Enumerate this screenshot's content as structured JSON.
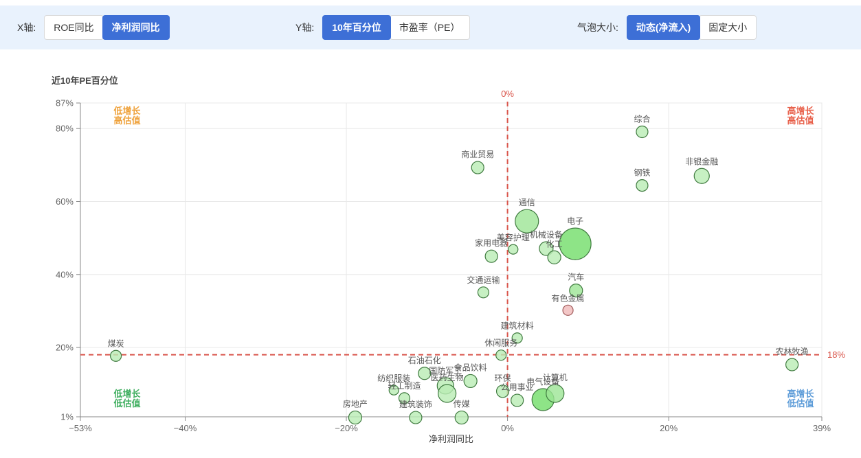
{
  "controls": {
    "x_axis": {
      "label": "X轴:",
      "options": [
        {
          "label": "ROE同比",
          "selected": false
        },
        {
          "label": "净利润同比",
          "selected": true
        }
      ]
    },
    "y_axis": {
      "label": "Y轴:",
      "options": [
        {
          "label": "10年百分位",
          "selected": true
        },
        {
          "label": "市盈率（PE）",
          "selected": false
        }
      ]
    },
    "bubble_size": {
      "label": "气泡大小:",
      "options": [
        {
          "label": "动态(净流入)",
          "selected": true
        },
        {
          "label": "固定大小",
          "selected": false
        }
      ]
    }
  },
  "colors": {
    "accent": "#3d6fd6",
    "toolbar_bg": "#e9f2fd",
    "grid": "#e8e8e8",
    "axis": "#888888",
    "tick_text": "#666666",
    "axis_title": "#444444",
    "bubble_label": "#555555",
    "ref_line": "#d9544a",
    "quadrant_orange": "#efa23c",
    "quadrant_red": "#e8604a",
    "quadrant_green": "#3fae5f",
    "quadrant_blue": "#5b9bd8",
    "bubble_light": "#b9ecb4",
    "bubble_medium": "#9ce595",
    "bubble_dark": "#72dd69",
    "bubble_pink": "#f0b9b9",
    "bubble_stroke_green": "#3f7a3f",
    "bubble_stroke_pink": "#a05a5a"
  },
  "chart_data": {
    "type": "scatter",
    "title": "",
    "xlabel": "净利润同比",
    "ylabel": "近10年PE百分位",
    "xlim": [
      -53,
      39
    ],
    "ylim": [
      1,
      87
    ],
    "x_ticks": [
      -53,
      -40,
      -20,
      0,
      20,
      39
    ],
    "x_tick_labels": [
      "−53%",
      "−40%",
      "−20%",
      "0%",
      "20%",
      "39%"
    ],
    "y_ticks": [
      1,
      20,
      40,
      60,
      80,
      87
    ],
    "y_tick_labels": [
      "1%",
      "20%",
      "40%",
      "60%",
      "80%",
      "87%"
    ],
    "x_gridlines": [
      -40,
      -20,
      0,
      20
    ],
    "y_gridlines": [
      20,
      40,
      60,
      80
    ],
    "grid": true,
    "legend": false,
    "reference_lines": {
      "vertical": {
        "value": 0,
        "label": "0%"
      },
      "horizontal": {
        "value": 18,
        "label": "18%"
      }
    },
    "quadrant_labels": [
      {
        "corner": "top-left",
        "lines": [
          "低增长",
          "高估值"
        ],
        "color_key": "quadrant_orange"
      },
      {
        "corner": "top-right",
        "lines": [
          "高增长",
          "高估值"
        ],
        "color_key": "quadrant_red"
      },
      {
        "corner": "bottom-left",
        "lines": [
          "低增长",
          "低估值"
        ],
        "color_key": "quadrant_green"
      },
      {
        "corner": "bottom-right",
        "lines": [
          "高增长",
          "低估值"
        ],
        "color_key": "quadrant_blue"
      }
    ],
    "points": [
      {
        "name": "煤炭",
        "x": -48.6,
        "y": 17.7,
        "r": 8,
        "shade": "light"
      },
      {
        "name": "房地产",
        "x": -18.9,
        "y": 0.8,
        "r": 9.5,
        "shade": "light"
      },
      {
        "name": "纺织服装",
        "x": -14.1,
        "y": 8.3,
        "r": 7,
        "shade": "light"
      },
      {
        "name": "轻工制造",
        "x": -12.8,
        "y": 6.1,
        "r": 8,
        "shade": "light"
      },
      {
        "name": "建筑装饰",
        "x": -11.4,
        "y": 0.8,
        "r": 9,
        "shade": "light"
      },
      {
        "name": "石油石化",
        "x": -10.3,
        "y": 12.9,
        "r": 9,
        "shade": "light"
      },
      {
        "name": "国防军工",
        "x": -7.7,
        "y": 9.5,
        "r": 12,
        "shade": "light"
      },
      {
        "name": "医药生物",
        "x": -7.5,
        "y": 7.4,
        "r": 13,
        "shade": "light"
      },
      {
        "name": "传媒",
        "x": -5.7,
        "y": 0.8,
        "r": 9.5,
        "shade": "light"
      },
      {
        "name": "食品饮料",
        "x": -4.6,
        "y": 10.8,
        "r": 9.5,
        "shade": "light"
      },
      {
        "name": "商业贸易",
        "x": -3.7,
        "y": 69.3,
        "r": 9,
        "shade": "light"
      },
      {
        "name": "交通运输",
        "x": -3.0,
        "y": 35.1,
        "r": 8,
        "shade": "light"
      },
      {
        "name": "家用电器",
        "x": -2.0,
        "y": 45.0,
        "r": 9,
        "shade": "light"
      },
      {
        "name": "休闲服务",
        "x": -0.8,
        "y": 17.9,
        "r": 7.5,
        "shade": "light"
      },
      {
        "name": "环保",
        "x": -0.6,
        "y": 8.0,
        "r": 9,
        "shade": "light"
      },
      {
        "name": "美容护理",
        "x": 0.7,
        "y": 46.9,
        "r": 7,
        "shade": "light"
      },
      {
        "name": "建筑材料",
        "x": 1.2,
        "y": 22.6,
        "r": 7.5,
        "shade": "light"
      },
      {
        "name": "公用事业",
        "x": 1.2,
        "y": 5.5,
        "r": 9,
        "shade": "light"
      },
      {
        "name": "通信",
        "x": 2.4,
        "y": 54.6,
        "r": 17,
        "shade": "medium"
      },
      {
        "name": "电气设备",
        "x": 4.4,
        "y": 5.7,
        "r": 16,
        "shade": "dark"
      },
      {
        "name": "机械设备",
        "x": 4.8,
        "y": 47.1,
        "r": 10,
        "shade": "light"
      },
      {
        "name": "化工",
        "x": 5.8,
        "y": 44.7,
        "r": 9.5,
        "shade": "light"
      },
      {
        "name": "计算机",
        "x": 5.9,
        "y": 7.4,
        "r": 13,
        "shade": "medium"
      },
      {
        "name": "有色金属",
        "x": 7.5,
        "y": 30.2,
        "r": 7.5,
        "shade": "pink"
      },
      {
        "name": "电子",
        "x": 8.4,
        "y": 48.4,
        "r": 23,
        "shade": "dark"
      },
      {
        "name": "汽车",
        "x": 8.5,
        "y": 35.6,
        "r": 9.5,
        "shade": "medium"
      },
      {
        "name": "综合",
        "x": 16.7,
        "y": 79.1,
        "r": 8.5,
        "shade": "light"
      },
      {
        "name": "钢铁",
        "x": 16.7,
        "y": 64.4,
        "r": 8.5,
        "shade": "light"
      },
      {
        "name": "非银金融",
        "x": 24.1,
        "y": 67.0,
        "r": 11,
        "shade": "light"
      },
      {
        "name": "农林牧渔",
        "x": 35.3,
        "y": 15.3,
        "r": 9,
        "shade": "light"
      }
    ]
  }
}
